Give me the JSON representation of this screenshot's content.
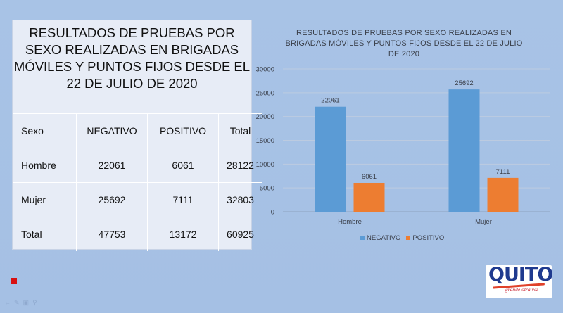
{
  "table": {
    "title": "RESULTADOS DE PRUEBAS POR SEXO REALIZADAS EN BRIGADAS MÓVILES Y PUNTOS FIJOS DESDE EL 22 DE JULIO DE 2020",
    "header": [
      "Sexo",
      "NEGATIVO",
      "POSITIVO",
      "Total"
    ],
    "rows": [
      [
        "Hombre",
        "22061",
        "6061",
        "28122"
      ],
      [
        "Mujer",
        "25692",
        "7111",
        "32803"
      ],
      [
        "Total",
        "47753",
        "13172",
        "60925"
      ]
    ]
  },
  "chart_data": {
    "type": "bar",
    "title": "RESULTADOS DE PRUEBAS POR SEXO REALIZADAS EN BRIGADAS MÓVILES Y PUNTOS FIJOS DESDE EL 22 DE JULIO DE 2020",
    "categories": [
      "Hombre",
      "Mujer"
    ],
    "series": [
      {
        "name": "NEGATIVO",
        "values": [
          22061,
          25692
        ],
        "color": "#5b9bd5"
      },
      {
        "name": "POSITIVO",
        "values": [
          6061,
          7111
        ],
        "color": "#ed7d31"
      }
    ],
    "ylim": [
      0,
      30000
    ],
    "yticks": [
      0,
      5000,
      10000,
      15000,
      20000,
      25000,
      30000
    ],
    "grid": true,
    "legend": "bottom",
    "data_labels": true
  },
  "logo": {
    "text": "QUITO",
    "tagline": "grande otra vez"
  },
  "colors": {
    "accent_line": "#e02020",
    "negativo": "#5b9bd5",
    "positivo": "#ed7d31"
  }
}
